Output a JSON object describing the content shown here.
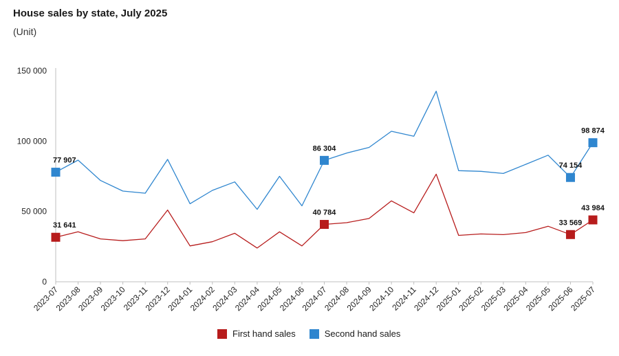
{
  "header": {
    "title": "House sales by state, July 2025",
    "subtitle": "(Unit)"
  },
  "colors": {
    "first_hand": "#b71c1c",
    "second_hand": "#2f86cf",
    "axis": "#bfbfbf"
  },
  "chart_data": {
    "type": "line",
    "title": "House sales by state, July 2025",
    "ylabel": "(Unit)",
    "ylim": [
      0,
      150000
    ],
    "yticks": [
      0,
      50000,
      100000,
      150000
    ],
    "ytick_labels": [
      "0",
      "50 000",
      "100 000",
      "150 000"
    ],
    "legend_position": "bottom-center",
    "grid": false,
    "categories": [
      "2023-07",
      "2023-08",
      "2023-09",
      "2023-10",
      "2023-11",
      "2023-12",
      "2024-01",
      "2024-02",
      "2024-03",
      "2024-04",
      "2024-05",
      "2024-06",
      "2024-07",
      "2024-08",
      "2024-09",
      "2024-10",
      "2024-11",
      "2024-12",
      "2025-01",
      "2025-02",
      "2025-03",
      "2025-04",
      "2025-05",
      "2025-06",
      "2025-07"
    ],
    "series": [
      {
        "name": "First hand sales",
        "color": "#b71c1c",
        "values": [
          31641,
          35500,
          30500,
          29200,
          30500,
          51000,
          25500,
          28500,
          34500,
          24000,
          35500,
          25500,
          40784,
          42000,
          45000,
          57500,
          49000,
          76500,
          33000,
          34000,
          33500,
          35000,
          39500,
          33569,
          43984
        ],
        "labels": [
          {
            "index": 0,
            "text": "31 641"
          },
          {
            "index": 12,
            "text": "40 784"
          },
          {
            "index": 23,
            "text": "33 569"
          },
          {
            "index": 24,
            "text": "43 984"
          }
        ]
      },
      {
        "name": "Second hand sales",
        "color": "#2f86cf",
        "values": [
          77907,
          86500,
          72000,
          64500,
          63000,
          87000,
          55500,
          65000,
          71000,
          51500,
          75000,
          54000,
          86304,
          91500,
          95500,
          107000,
          103500,
          135500,
          79000,
          78500,
          77000,
          83500,
          90000,
          74154,
          98874
        ],
        "labels": [
          {
            "index": 0,
            "text": "77 907"
          },
          {
            "index": 12,
            "text": "86 304"
          },
          {
            "index": 23,
            "text": "74 154"
          },
          {
            "index": 24,
            "text": "98 874"
          }
        ]
      }
    ]
  }
}
